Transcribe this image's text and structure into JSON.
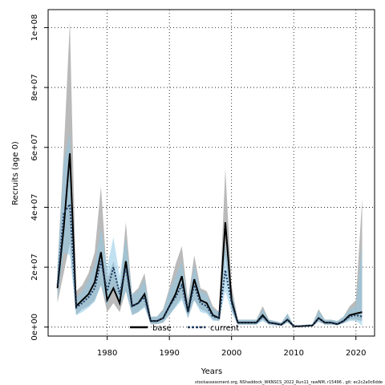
{
  "chart_data": {
    "type": "line",
    "xlabel": "Years",
    "ylabel": "Recruits (age 0)",
    "xlim": [
      1970.5,
      2023
    ],
    "ylim": [
      -3000000,
      106000000
    ],
    "x_ticks": [
      1980,
      1990,
      2000,
      2010,
      2020
    ],
    "y_ticks": [
      0,
      20000000,
      40000000,
      60000000,
      80000000,
      100000000
    ],
    "y_tick_labels": [
      "0e+00",
      "2e+07",
      "4e+07",
      "6e+07",
      "8e+07",
      "1e+08"
    ],
    "grid": true,
    "legend_position": "bottom-center",
    "footer": "stockassessment.org, NShaddock_WKNSCS_2022_Run11_rawNM, r15496 , git: ec2c2a0c6dde",
    "colors": {
      "base_line": "#000000",
      "base_band": "#b3b3b3",
      "current_line": "#1f3a5f",
      "current_band": "#8ec9e6",
      "overlap_band": "#6f9fb8"
    },
    "x": [
      1972,
      1973,
      1974,
      1975,
      1976,
      1977,
      1978,
      1979,
      1980,
      1981,
      1982,
      1983,
      1984,
      1985,
      1986,
      1987,
      1988,
      1989,
      1990,
      1991,
      1992,
      1993,
      1994,
      1995,
      1996,
      1997,
      1998,
      1999,
      2000,
      2001,
      2002,
      2003,
      2004,
      2005,
      2006,
      2007,
      2008,
      2009,
      2010,
      2011,
      2012,
      2013,
      2014,
      2015,
      2016,
      2017,
      2018,
      2019,
      2020,
      2021
    ],
    "series": [
      {
        "name": "base",
        "values": [
          13000000,
          33000000,
          58000000,
          7000000,
          9000000,
          11000000,
          15000000,
          25000000,
          9000000,
          13000000,
          8000000,
          22000000,
          7000000,
          8000000,
          11000000,
          2000000,
          2000000,
          3000000,
          7000000,
          11000000,
          17000000,
          5000000,
          16000000,
          9000000,
          8000000,
          4000000,
          3000000,
          35000000,
          9000000,
          1500000,
          1500000,
          1500000,
          1500000,
          4000000,
          1500000,
          1200000,
          800000,
          2500000,
          300000,
          300000,
          400000,
          500000,
          3000000,
          1500000,
          1500000,
          1000000,
          2000000,
          4000000,
          4500000,
          5000000
        ],
        "lower": [
          8000000,
          18000000,
          28000000,
          4000000,
          6000000,
          7000000,
          9000000,
          14000000,
          5000000,
          8000000,
          5000000,
          12000000,
          4000000,
          5000000,
          7000000,
          1000000,
          1000000,
          1500000,
          4000000,
          7000000,
          10000000,
          3000000,
          9000000,
          6000000,
          5000000,
          2500000,
          2000000,
          24000000,
          6000000,
          800000,
          800000,
          800000,
          800000,
          2500000,
          800000,
          600000,
          400000,
          1500000,
          100000,
          100000,
          200000,
          300000,
          1800000,
          800000,
          800000,
          600000,
          1200000,
          2500000,
          2500000,
          2000000
        ],
        "upper": [
          20000000,
          58000000,
          102000000,
          12000000,
          14000000,
          18000000,
          25000000,
          47000000,
          16000000,
          22000000,
          12000000,
          35000000,
          11000000,
          13000000,
          18000000,
          3500000,
          3500000,
          6000000,
          13000000,
          21000000,
          27000000,
          9000000,
          24000000,
          13000000,
          12000000,
          7000000,
          5000000,
          53000000,
          14000000,
          2500000,
          2500000,
          2500000,
          2500000,
          7000000,
          2500000,
          2000000,
          1500000,
          4500000,
          600000,
          600000,
          800000,
          1000000,
          6000000,
          2500000,
          2500000,
          2000000,
          3500000,
          7000000,
          9000000,
          43000000
        ]
      },
      {
        "name": "current",
        "values": [
          14000000,
          38000000,
          41000000,
          6500000,
          8000000,
          10000000,
          13000000,
          22000000,
          12000000,
          20000000,
          11000000,
          20000000,
          7000000,
          8000000,
          10000000,
          2000000,
          2000000,
          3000000,
          7000000,
          10000000,
          14000000,
          5000000,
          14000000,
          8000000,
          7000000,
          3500000,
          3000000,
          19000000,
          8000000,
          1500000,
          1500000,
          1500000,
          1500000,
          3500000,
          1500000,
          1200000,
          800000,
          2500000,
          300000,
          300000,
          400000,
          500000,
          3000000,
          1500000,
          1500000,
          1000000,
          2000000,
          3500000,
          4000000,
          3500000
        ],
        "lower": [
          9000000,
          25000000,
          24000000,
          4000000,
          5000000,
          6500000,
          8500000,
          14000000,
          7000000,
          13000000,
          7000000,
          12000000,
          4000000,
          5000000,
          6500000,
          1000000,
          1000000,
          1500000,
          4000000,
          6500000,
          9000000,
          3000000,
          9000000,
          5000000,
          4500000,
          2000000,
          2000000,
          12000000,
          5000000,
          800000,
          800000,
          800000,
          800000,
          2000000,
          800000,
          600000,
          400000,
          1500000,
          100000,
          100000,
          200000,
          300000,
          1800000,
          800000,
          800000,
          600000,
          1200000,
          2000000,
          2000000,
          500000
        ],
        "upper": [
          20000000,
          55000000,
          65000000,
          10000000,
          12000000,
          16000000,
          21000000,
          33000000,
          20000000,
          30000000,
          17000000,
          30000000,
          11000000,
          12000000,
          16000000,
          3500000,
          3500000,
          5500000,
          12000000,
          17000000,
          22000000,
          8000000,
          21000000,
          12000000,
          11000000,
          6000000,
          5000000,
          28000000,
          12000000,
          2500000,
          2500000,
          2500000,
          2500000,
          6000000,
          2500000,
          2000000,
          1500000,
          4500000,
          600000,
          600000,
          800000,
          1000000,
          5500000,
          2500000,
          2500000,
          2000000,
          3500000,
          6000000,
          7000000,
          28000000
        ]
      }
    ]
  }
}
